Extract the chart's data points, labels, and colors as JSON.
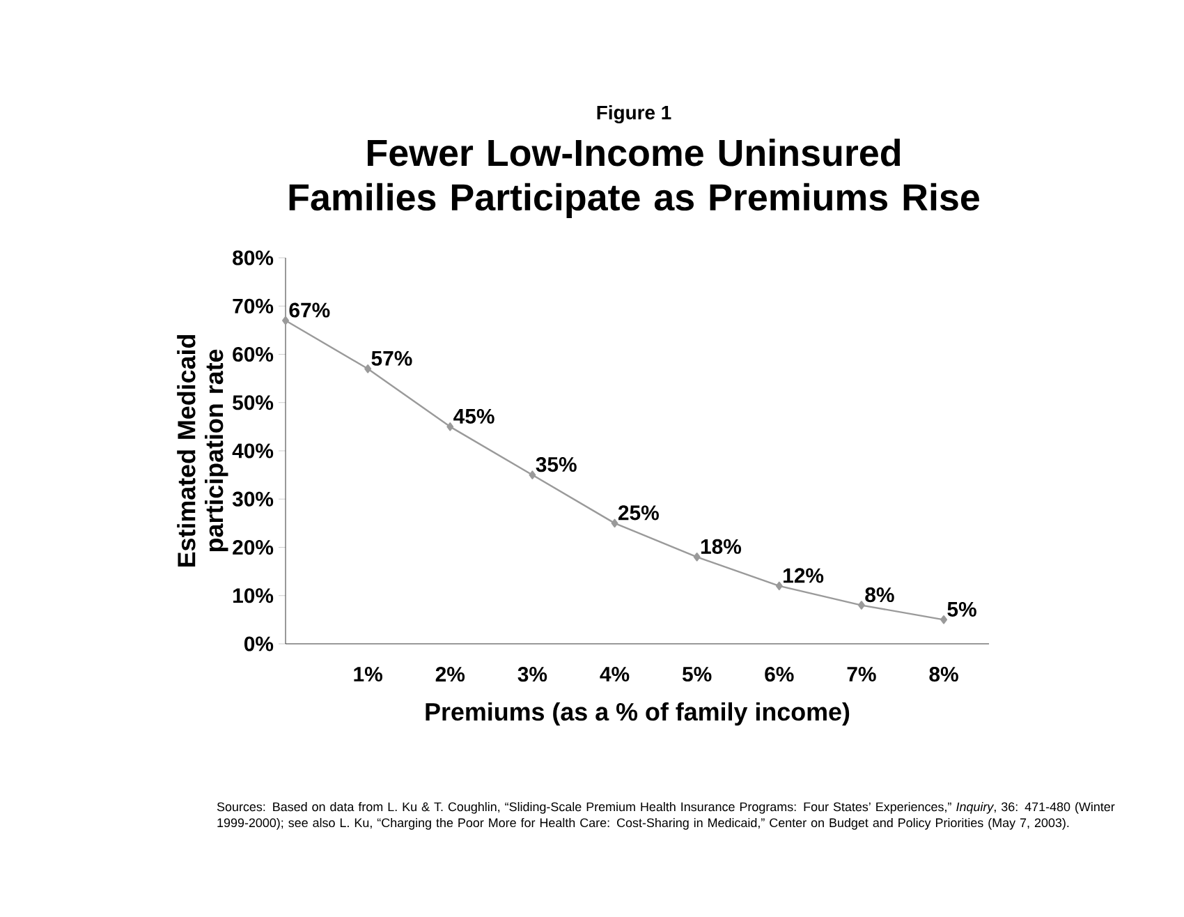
{
  "chart_data": {
    "type": "line",
    "subtitle": "Figure 1",
    "title": "Fewer Low-Income Uninsured Families Participate as Premiums Rise",
    "xlabel": "Premiums (as a % of family income)",
    "ylabel": "Estimated Medicaid participation rate",
    "x": [
      0,
      1,
      2,
      3,
      4,
      5,
      6,
      7,
      8
    ],
    "series": [
      {
        "color": "#9a9a9a",
        "values": [
          67,
          57,
          45,
          35,
          25,
          18,
          12,
          8,
          5
        ],
        "value_labels": [
          "67%",
          "57%",
          "45%",
          "35%",
          "25%",
          "18%",
          "12%",
          "8%",
          "5%"
        ]
      }
    ],
    "xlim": [
      0,
      8.55
    ],
    "xticks": [
      {
        "value": 1,
        "label": "1%"
      },
      {
        "value": 2,
        "label": "2%"
      },
      {
        "value": 3,
        "label": "3%"
      },
      {
        "value": 4,
        "label": "4%"
      },
      {
        "value": 5,
        "label": "5%"
      },
      {
        "value": 6,
        "label": "6%"
      },
      {
        "value": 7,
        "label": "7%"
      },
      {
        "value": 8,
        "label": "8%"
      }
    ],
    "ylim": [
      0,
      80
    ],
    "yticks": [
      {
        "value": 0,
        "label": "0%"
      },
      {
        "value": 10,
        "label": "10%"
      },
      {
        "value": 20,
        "label": "20%"
      },
      {
        "value": 30,
        "label": "30%"
      },
      {
        "value": 40,
        "label": "40%"
      },
      {
        "value": 50,
        "label": "50%"
      },
      {
        "value": 60,
        "label": "60%"
      },
      {
        "value": 70,
        "label": "70%"
      },
      {
        "value": 80,
        "label": "80%"
      }
    ],
    "marker": "diamond",
    "line_style": "solid",
    "annotations": [
      "Sources: Based on data from L. Ku & T. Coughlin, “Sliding-Scale Premium Health Insurance Programs: Four States’ Experiences,” *Inquiry*, 36: 471-480 (Winter 1999-2000); see also L. Ku, “Charging the Poor More for Health Care: Cost-Sharing in Medicaid,” Center on Budget and Policy Priorities (May 7, 2003)."
    ]
  }
}
